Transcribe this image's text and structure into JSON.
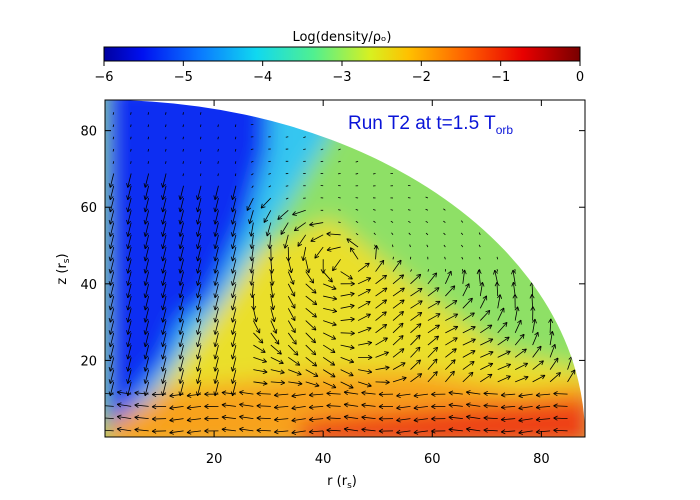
{
  "chart_data": {
    "type": "heatmap",
    "variant": "quarter-disk density map with velocity vector overlay",
    "colorbar": {
      "label": "Log(density/ρₒ)",
      "range": [
        -6,
        0
      ],
      "ticks": [
        -6,
        -5,
        -4,
        -3,
        -2,
        -1,
        0
      ],
      "tick_labels": [
        "−6",
        "−5",
        "−4",
        "−3",
        "−2",
        "−1",
        "0"
      ],
      "colormap": "rainbow",
      "placement": "top"
    },
    "annotation": {
      "main": "Run T2 at t=1.5 T",
      "subscript": "orb",
      "color": "#0a14d8"
    },
    "x_axis": {
      "label_main": "r (r",
      "label_sub": "s",
      "label_close": ")",
      "range": [
        0,
        88
      ],
      "ticks": [
        20,
        40,
        60,
        80
      ],
      "tick_labels": [
        "20",
        "40",
        "60",
        "80"
      ]
    },
    "y_axis": {
      "label_main": "z (r",
      "label_sub": "s",
      "label_close": ")",
      "range": [
        0,
        88
      ],
      "ticks": [
        20,
        40,
        60,
        80
      ],
      "tick_labels": [
        "20",
        "40",
        "60",
        "80"
      ]
    },
    "domain": {
      "shape": "quarter-disk",
      "radius": 88
    },
    "density_regions": [
      {
        "name": "low-density polar funnel",
        "log_density": -5.8
      },
      {
        "name": "cyan transition layer",
        "log_density": -4.2
      },
      {
        "name": "green outer atmosphere",
        "log_density": -3.2
      },
      {
        "name": "yellow mid-latitude region",
        "log_density": -2.4
      },
      {
        "name": "orange dense region",
        "log_density": -1.6
      },
      {
        "name": "red equatorial disk",
        "log_density": -1.0
      }
    ],
    "vector_field": {
      "grid_spacing": 3.2,
      "arrow_head": "open"
    }
  }
}
